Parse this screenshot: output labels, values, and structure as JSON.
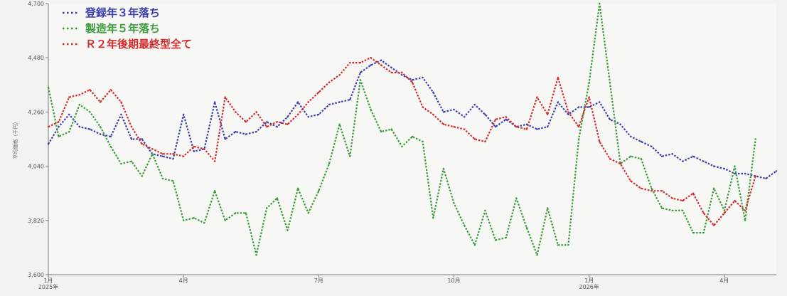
{
  "chart_data": {
    "type": "line",
    "title": "",
    "xlabel": "",
    "ylabel": "平均価格（千円）",
    "ylim": [
      3600,
      4700
    ],
    "yticks": [
      3600,
      3820,
      4040,
      4260,
      4480,
      4700
    ],
    "ytick_labels": [
      "3,600",
      "3,820",
      "4,040",
      "4,260",
      "4,480",
      "4,700"
    ],
    "grid": false,
    "legend_position": "top-left",
    "x_index_range": [
      0,
      70
    ],
    "xticks": [
      {
        "i": 0,
        "line1": "1月",
        "line2": "2025年"
      },
      {
        "i": 13,
        "line1": "4月",
        "line2": ""
      },
      {
        "i": 26,
        "line1": "7月",
        "line2": ""
      },
      {
        "i": 39,
        "line1": "10月",
        "line2": ""
      },
      {
        "i": 52,
        "line1": "1月",
        "line2": "2026年"
      },
      {
        "i": 65,
        "line1": "4月",
        "line2": ""
      }
    ],
    "series": [
      {
        "name": "登録年３年落ち",
        "color": "#3b3fae",
        "values": [
          4130,
          4200,
          4250,
          4200,
          4190,
          4170,
          4160,
          4250,
          4150,
          4150,
          4090,
          4080,
          4070,
          4250,
          4100,
          4110,
          4300,
          4150,
          4180,
          4170,
          4180,
          4220,
          4200,
          4240,
          4300,
          4240,
          4250,
          4290,
          4300,
          4310,
          4420,
          4450,
          4470,
          4440,
          4410,
          4390,
          4400,
          4340,
          4260,
          4270,
          4240,
          4290,
          4250,
          4200,
          4230,
          4200,
          4210,
          4190,
          4200,
          4300,
          4250,
          4280,
          4280,
          4300,
          4230,
          4210,
          4160,
          4140,
          4120,
          4080,
          4090,
          4060,
          4080,
          4060,
          4040,
          4030,
          4010,
          4010,
          4000,
          3990,
          4020
        ]
      },
      {
        "name": "製造年５年落ち",
        "color": "#3c9b3c",
        "values": [
          4360,
          4160,
          4180,
          4290,
          4260,
          4200,
          4120,
          4050,
          4060,
          4000,
          4090,
          3990,
          3980,
          3820,
          3830,
          3810,
          3940,
          3820,
          3850,
          3850,
          3680,
          3870,
          3910,
          3780,
          3950,
          3850,
          3940,
          4050,
          4210,
          4080,
          4390,
          4270,
          4180,
          4190,
          4120,
          4160,
          4140,
          3830,
          4030,
          3890,
          3800,
          3720,
          3860,
          3740,
          3750,
          3910,
          3790,
          3680,
          3870,
          3720,
          3720,
          4150,
          4380,
          4700,
          4380,
          4050,
          4080,
          4070,
          3950,
          3870,
          3860,
          3860,
          3770,
          3770,
          3950,
          3860,
          4040,
          3820,
          4150
        ]
      },
      {
        "name": "Ｒ２年後期最終型全て",
        "color": "#d52b2b",
        "values": [
          4200,
          4220,
          4320,
          4330,
          4350,
          4300,
          4350,
          4300,
          4200,
          4130,
          4110,
          4090,
          4090,
          4080,
          4120,
          4110,
          4060,
          4320,
          4260,
          4220,
          4260,
          4200,
          4220,
          4210,
          4250,
          4300,
          4340,
          4380,
          4410,
          4460,
          4460,
          4480,
          4450,
          4420,
          4420,
          4380,
          4280,
          4250,
          4210,
          4200,
          4190,
          4150,
          4140,
          4230,
          4240,
          4200,
          4190,
          4320,
          4250,
          4400,
          4260,
          4200,
          4320,
          4140,
          4070,
          4050,
          3980,
          3950,
          3940,
          3940,
          3910,
          3900,
          3930,
          3850,
          3800,
          3850,
          3900,
          3860,
          4000
        ]
      }
    ]
  }
}
